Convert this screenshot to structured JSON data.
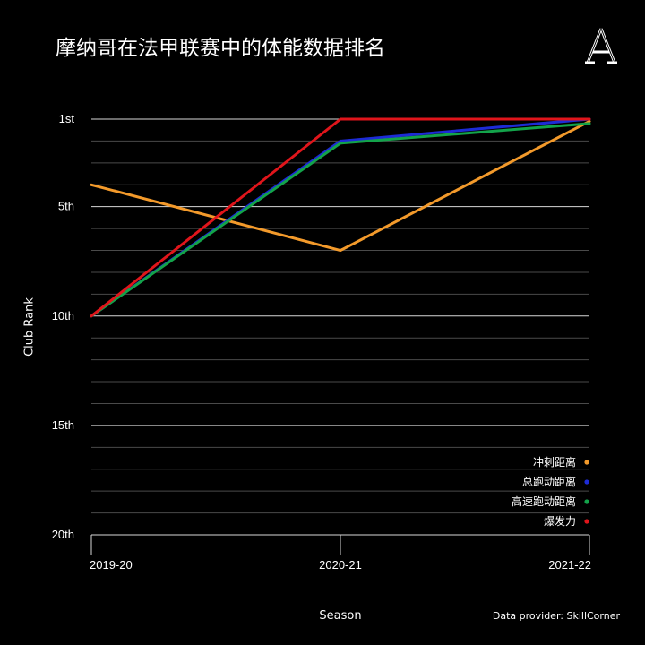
{
  "chart_data": {
    "type": "line",
    "title": "摩纳哥在法甲联赛中的体能数据排名",
    "xlabel": "Season",
    "ylabel": "Club Rank",
    "categories": [
      "2019-20",
      "2020-21",
      "2021-22"
    ],
    "y_ticks": [
      {
        "value": 1,
        "label": "1st"
      },
      {
        "value": 5,
        "label": "5th"
      },
      {
        "value": 10,
        "label": "10th"
      },
      {
        "value": 15,
        "label": "15th"
      },
      {
        "value": 20,
        "label": "20th"
      }
    ],
    "ylim": [
      20,
      1
    ],
    "y_inverted": true,
    "grid": true,
    "legend_position": "bottom-right",
    "series": [
      {
        "name": "冲刺距离",
        "color": "#f39a2b",
        "values": [
          4,
          7,
          1.1
        ]
      },
      {
        "name": "总跑动距离",
        "color": "#1d2bd6",
        "values": [
          10,
          2,
          1
        ]
      },
      {
        "name": "高速跑动距离",
        "color": "#13a34a",
        "values": [
          10,
          2.1,
          1.2
        ]
      },
      {
        "name": "爆发力",
        "color": "#e0151b",
        "values": [
          10,
          1,
          1
        ]
      }
    ],
    "source": "Data provider: SkillCorner"
  },
  "logo_text": "A"
}
